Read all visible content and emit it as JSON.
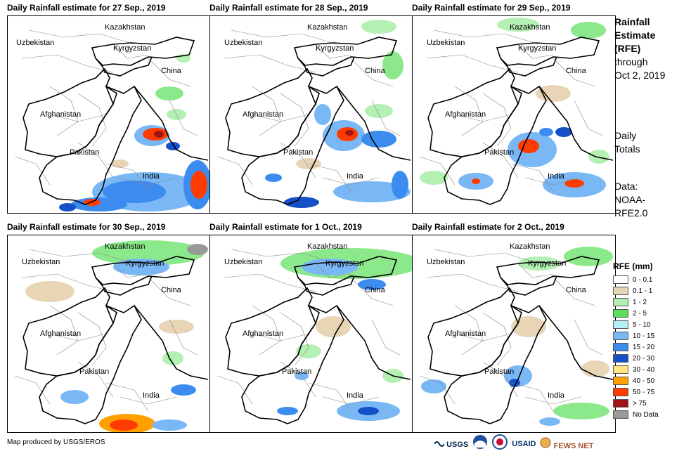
{
  "panels": [
    {
      "title": "Daily Rainfall estimate for 27 Sep., 2019"
    },
    {
      "title": "Daily Rainfall estimate for 28 Sep., 2019"
    },
    {
      "title": "Daily Rainfall estimate for 29 Sep., 2019"
    },
    {
      "title": "Daily Rainfall estimate for 30 Sep., 2019"
    },
    {
      "title": "Daily Rainfall estimate for 1 Oct., 2019"
    },
    {
      "title": "Daily Rainfall estimate for 2 Oct., 2019"
    }
  ],
  "map_labels": {
    "kazakhstan": "Kazakhstan",
    "uzbekistan": "Uzbekistan",
    "kyrgyzstan": "Kyrgyzstan",
    "china": "China",
    "afghanistan": "Afghanistan",
    "pakistan": "Pakistan",
    "india": "India"
  },
  "side": {
    "title_line1": "Rainfall",
    "title_line2": "Estimate",
    "title_line3": "(RFE)",
    "title_line4": "through",
    "title_line5": "Oct 2, 2019",
    "daily_line1": "Daily",
    "daily_line2": "Totals",
    "data_line1": "Data:",
    "data_line2": "NOAA-",
    "data_line3": "RFE2.0"
  },
  "legend": {
    "title": "RFE (mm)",
    "items": [
      {
        "label": "0 - 0.1",
        "color": "#ffffff"
      },
      {
        "label": "0.1 - 1",
        "color": "#e8d5b5"
      },
      {
        "label": "1 - 2",
        "color": "#b4f0b4"
      },
      {
        "label": "2 - 5",
        "color": "#5ae05a"
      },
      {
        "label": "5 - 10",
        "color": "#b4f0f5"
      },
      {
        "label": "10 - 15",
        "color": "#7ab8f5"
      },
      {
        "label": "15 - 20",
        "color": "#3c8cf0"
      },
      {
        "label": "20 - 30",
        "color": "#1450c8"
      },
      {
        "label": "30 - 40",
        "color": "#ffe682"
      },
      {
        "label": "40 - 50",
        "color": "#ffa000"
      },
      {
        "label": "50 - 75",
        "color": "#ff3c00"
      },
      {
        "label": "> 75",
        "color": "#a01414"
      },
      {
        "label": "No Data",
        "color": "#999999"
      }
    ]
  },
  "credit": "Map produced by USGS/EROS",
  "logos": {
    "usgs": "USGS",
    "usaid": "USAID",
    "fewsnet": "FEWS NET"
  }
}
